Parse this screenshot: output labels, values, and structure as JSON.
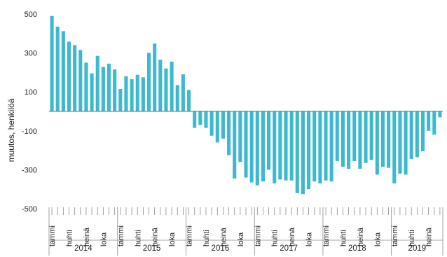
{
  "chart_data": {
    "type": "bar",
    "title": "",
    "ylabel": "muutos, henkilöä",
    "xlabel": "",
    "ylim": [
      -500,
      500
    ],
    "yticks": [
      500,
      300,
      100,
      -100,
      -300,
      -500
    ],
    "grid": false,
    "color": "#3bb9d0",
    "start": "2014-01",
    "months": [
      {
        "year": 2014,
        "labels": {
          "0": "tammi",
          "3": "huhti",
          "6": "heinä",
          "9": "loka"
        }
      },
      {
        "year": 2015,
        "labels": {
          "0": "tammi",
          "3": "huhti",
          "6": "heinä",
          "9": "loka"
        }
      },
      {
        "year": 2016,
        "labels": {
          "0": "tammi",
          "3": "huhti",
          "6": "heinä",
          "9": "loka"
        }
      },
      {
        "year": 2017,
        "labels": {
          "0": "tammi",
          "3": "huhti",
          "6": "heinä",
          "9": "loka"
        }
      },
      {
        "year": 2018,
        "labels": {
          "0": "tammi",
          "3": "huhti",
          "6": "heinä",
          "9": "loka"
        }
      },
      {
        "year": 2019,
        "labels": {
          "0": "tammi",
          "3": "huhti",
          "6": "heinä"
        }
      }
    ],
    "years": [
      "2014",
      "2015",
      "2016",
      "2017",
      "2018",
      "2019"
    ],
    "values": [
      490,
      435,
      412,
      358,
      340,
      315,
      250,
      195,
      285,
      228,
      245,
      215,
      115,
      180,
      165,
      188,
      175,
      300,
      348,
      265,
      220,
      255,
      135,
      190,
      110,
      -85,
      -70,
      -85,
      -125,
      -160,
      -140,
      -225,
      -345,
      -260,
      -340,
      -365,
      -380,
      -360,
      -300,
      -370,
      -350,
      -355,
      -355,
      -420,
      -425,
      -400,
      -360,
      -370,
      -355,
      -360,
      -255,
      -285,
      -295,
      -255,
      -295,
      -265,
      -250,
      -325,
      -285,
      -290,
      -370,
      -320,
      -325,
      -245,
      -235,
      -205,
      -100,
      -120,
      -30
    ]
  }
}
